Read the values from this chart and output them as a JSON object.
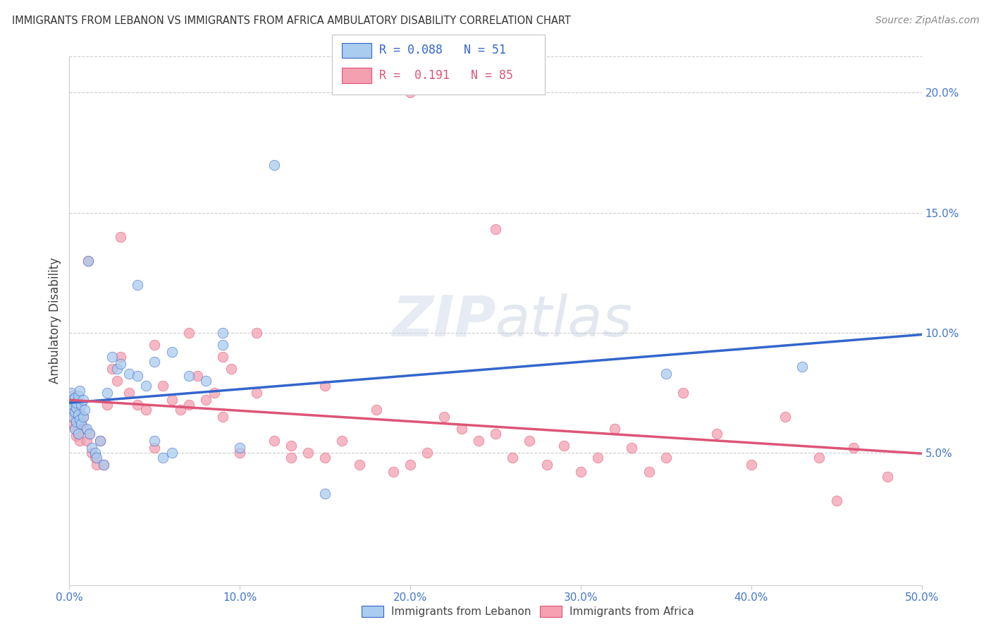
{
  "title": "IMMIGRANTS FROM LEBANON VS IMMIGRANTS FROM AFRICA AMBULATORY DISABILITY CORRELATION CHART",
  "source": "Source: ZipAtlas.com",
  "ylabel": "Ambulatory Disability",
  "lebanon_color": "#aaccee",
  "africa_color": "#f4a0b0",
  "lebanon_line_color": "#3366cc",
  "africa_line_color": "#dd5577",
  "xlim": [
    0.0,
    0.5
  ],
  "ylim": [
    -0.005,
    0.215
  ],
  "right_yticks": [
    0.05,
    0.1,
    0.15,
    0.2
  ],
  "right_ytick_labels": [
    "5.0%",
    "10.0%",
    "15.0%",
    "20.0%"
  ],
  "watermark": "ZIPatlas",
  "lebanon_x": [
    0.001,
    0.001,
    0.002,
    0.002,
    0.002,
    0.003,
    0.003,
    0.003,
    0.004,
    0.004,
    0.004,
    0.005,
    0.005,
    0.005,
    0.006,
    0.006,
    0.007,
    0.007,
    0.008,
    0.008,
    0.009,
    0.01,
    0.011,
    0.012,
    0.013,
    0.015,
    0.016,
    0.018,
    0.02,
    0.022,
    0.025,
    0.028,
    0.03,
    0.035,
    0.04,
    0.045,
    0.05,
    0.055,
    0.06,
    0.07,
    0.08,
    0.09,
    0.1,
    0.12,
    0.15,
    0.04,
    0.05,
    0.06,
    0.09,
    0.35,
    0.43
  ],
  "lebanon_y": [
    0.075,
    0.068,
    0.072,
    0.065,
    0.07,
    0.067,
    0.073,
    0.06,
    0.063,
    0.069,
    0.071,
    0.066,
    0.074,
    0.058,
    0.064,
    0.076,
    0.062,
    0.07,
    0.065,
    0.072,
    0.068,
    0.06,
    0.13,
    0.058,
    0.052,
    0.05,
    0.048,
    0.055,
    0.045,
    0.075,
    0.09,
    0.085,
    0.087,
    0.083,
    0.082,
    0.078,
    0.055,
    0.048,
    0.05,
    0.082,
    0.08,
    0.095,
    0.052,
    0.17,
    0.033,
    0.12,
    0.088,
    0.092,
    0.1,
    0.083,
    0.086
  ],
  "africa_x": [
    0.001,
    0.001,
    0.002,
    0.002,
    0.002,
    0.003,
    0.003,
    0.003,
    0.004,
    0.004,
    0.005,
    0.005,
    0.006,
    0.006,
    0.007,
    0.008,
    0.009,
    0.01,
    0.011,
    0.012,
    0.013,
    0.015,
    0.016,
    0.018,
    0.02,
    0.022,
    0.025,
    0.028,
    0.03,
    0.035,
    0.04,
    0.045,
    0.05,
    0.055,
    0.06,
    0.065,
    0.07,
    0.075,
    0.08,
    0.085,
    0.09,
    0.095,
    0.1,
    0.11,
    0.12,
    0.13,
    0.14,
    0.15,
    0.16,
    0.17,
    0.18,
    0.19,
    0.2,
    0.21,
    0.22,
    0.23,
    0.24,
    0.25,
    0.26,
    0.27,
    0.28,
    0.29,
    0.3,
    0.31,
    0.32,
    0.33,
    0.34,
    0.35,
    0.36,
    0.38,
    0.4,
    0.42,
    0.44,
    0.46,
    0.48,
    0.03,
    0.05,
    0.07,
    0.09,
    0.11,
    0.13,
    0.15,
    0.2,
    0.25,
    0.45
  ],
  "africa_y": [
    0.065,
    0.071,
    0.062,
    0.068,
    0.074,
    0.06,
    0.066,
    0.072,
    0.057,
    0.063,
    0.058,
    0.07,
    0.055,
    0.067,
    0.062,
    0.065,
    0.06,
    0.055,
    0.13,
    0.058,
    0.05,
    0.048,
    0.045,
    0.055,
    0.045,
    0.07,
    0.085,
    0.08,
    0.14,
    0.075,
    0.07,
    0.068,
    0.052,
    0.078,
    0.072,
    0.068,
    0.07,
    0.082,
    0.072,
    0.075,
    0.065,
    0.085,
    0.05,
    0.1,
    0.055,
    0.053,
    0.05,
    0.048,
    0.055,
    0.045,
    0.068,
    0.042,
    0.045,
    0.05,
    0.065,
    0.06,
    0.055,
    0.058,
    0.048,
    0.055,
    0.045,
    0.053,
    0.042,
    0.048,
    0.06,
    0.052,
    0.042,
    0.048,
    0.075,
    0.058,
    0.045,
    0.065,
    0.048,
    0.052,
    0.04,
    0.09,
    0.095,
    0.1,
    0.09,
    0.075,
    0.048,
    0.078,
    0.2,
    0.143,
    0.03
  ]
}
